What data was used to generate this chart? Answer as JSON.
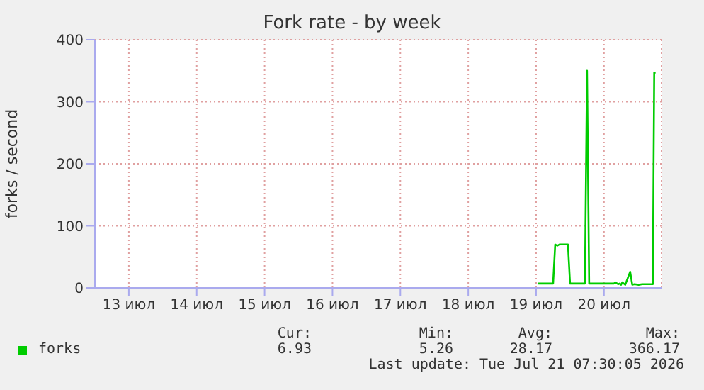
{
  "chart_data": {
    "type": "line",
    "title": "Fork rate - by week",
    "ylabel": "forks / second",
    "x": [
      "2026-07-19T12:30",
      "2026-07-19T18:00",
      "2026-07-19T18:45",
      "2026-07-19T19:30",
      "2026-07-19T20:15",
      "2026-07-19T23:15",
      "2026-07-20T00:00",
      "2026-07-20T05:15",
      "2026-07-20T06:00",
      "2026-07-20T06:45",
      "2026-07-20T15:30",
      "2026-07-20T16:00",
      "2026-07-20T17:00",
      "2026-07-20T17:30",
      "2026-07-20T18:00",
      "2026-07-20T18:30",
      "2026-07-20T19:30",
      "2026-07-20T21:15",
      "2026-07-20T22:00",
      "2026-07-20T22:45",
      "2026-07-21T00:15",
      "2026-07-21T01:30",
      "2026-07-21T02:45",
      "2026-07-21T05:15",
      "2026-07-21T05:45",
      "2026-07-21T06:15"
    ],
    "series": [
      {
        "name": "forks",
        "color": "#00cc00",
        "values": [
          7,
          7,
          70,
          68,
          70,
          70,
          7,
          7,
          350,
          7,
          7,
          9,
          6,
          7,
          5,
          9,
          5,
          26,
          5,
          6,
          5,
          6,
          6,
          6,
          347,
          347
        ]
      }
    ],
    "xlim": [
      "2026-07-13T00:00",
      "2026-07-21T08:20"
    ],
    "xticks": [
      {
        "value": "2026-07-13T12:00",
        "label": "13 июл"
      },
      {
        "value": "2026-07-14T12:00",
        "label": "14 июл"
      },
      {
        "value": "2026-07-15T12:00",
        "label": "15 июл"
      },
      {
        "value": "2026-07-16T12:00",
        "label": "16 июл"
      },
      {
        "value": "2026-07-17T12:00",
        "label": "17 июл"
      },
      {
        "value": "2026-07-18T12:00",
        "label": "18 июл"
      },
      {
        "value": "2026-07-19T12:00",
        "label": "19 июл"
      },
      {
        "value": "2026-07-20T12:00",
        "label": "20 июл"
      }
    ],
    "ylim": [
      0,
      400
    ],
    "yticks": [
      0,
      100,
      200,
      300,
      400
    ],
    "grid": true,
    "legend": "bottom",
    "marker": "none",
    "line_style": "solid",
    "annotations": [
      "Cur:",
      "Min:",
      "Avg:",
      "Max:",
      "6.93",
      "5.26",
      "28.17",
      "366.17",
      "Last update: Tue Jul 21 07:30:05 2026"
    ]
  }
}
